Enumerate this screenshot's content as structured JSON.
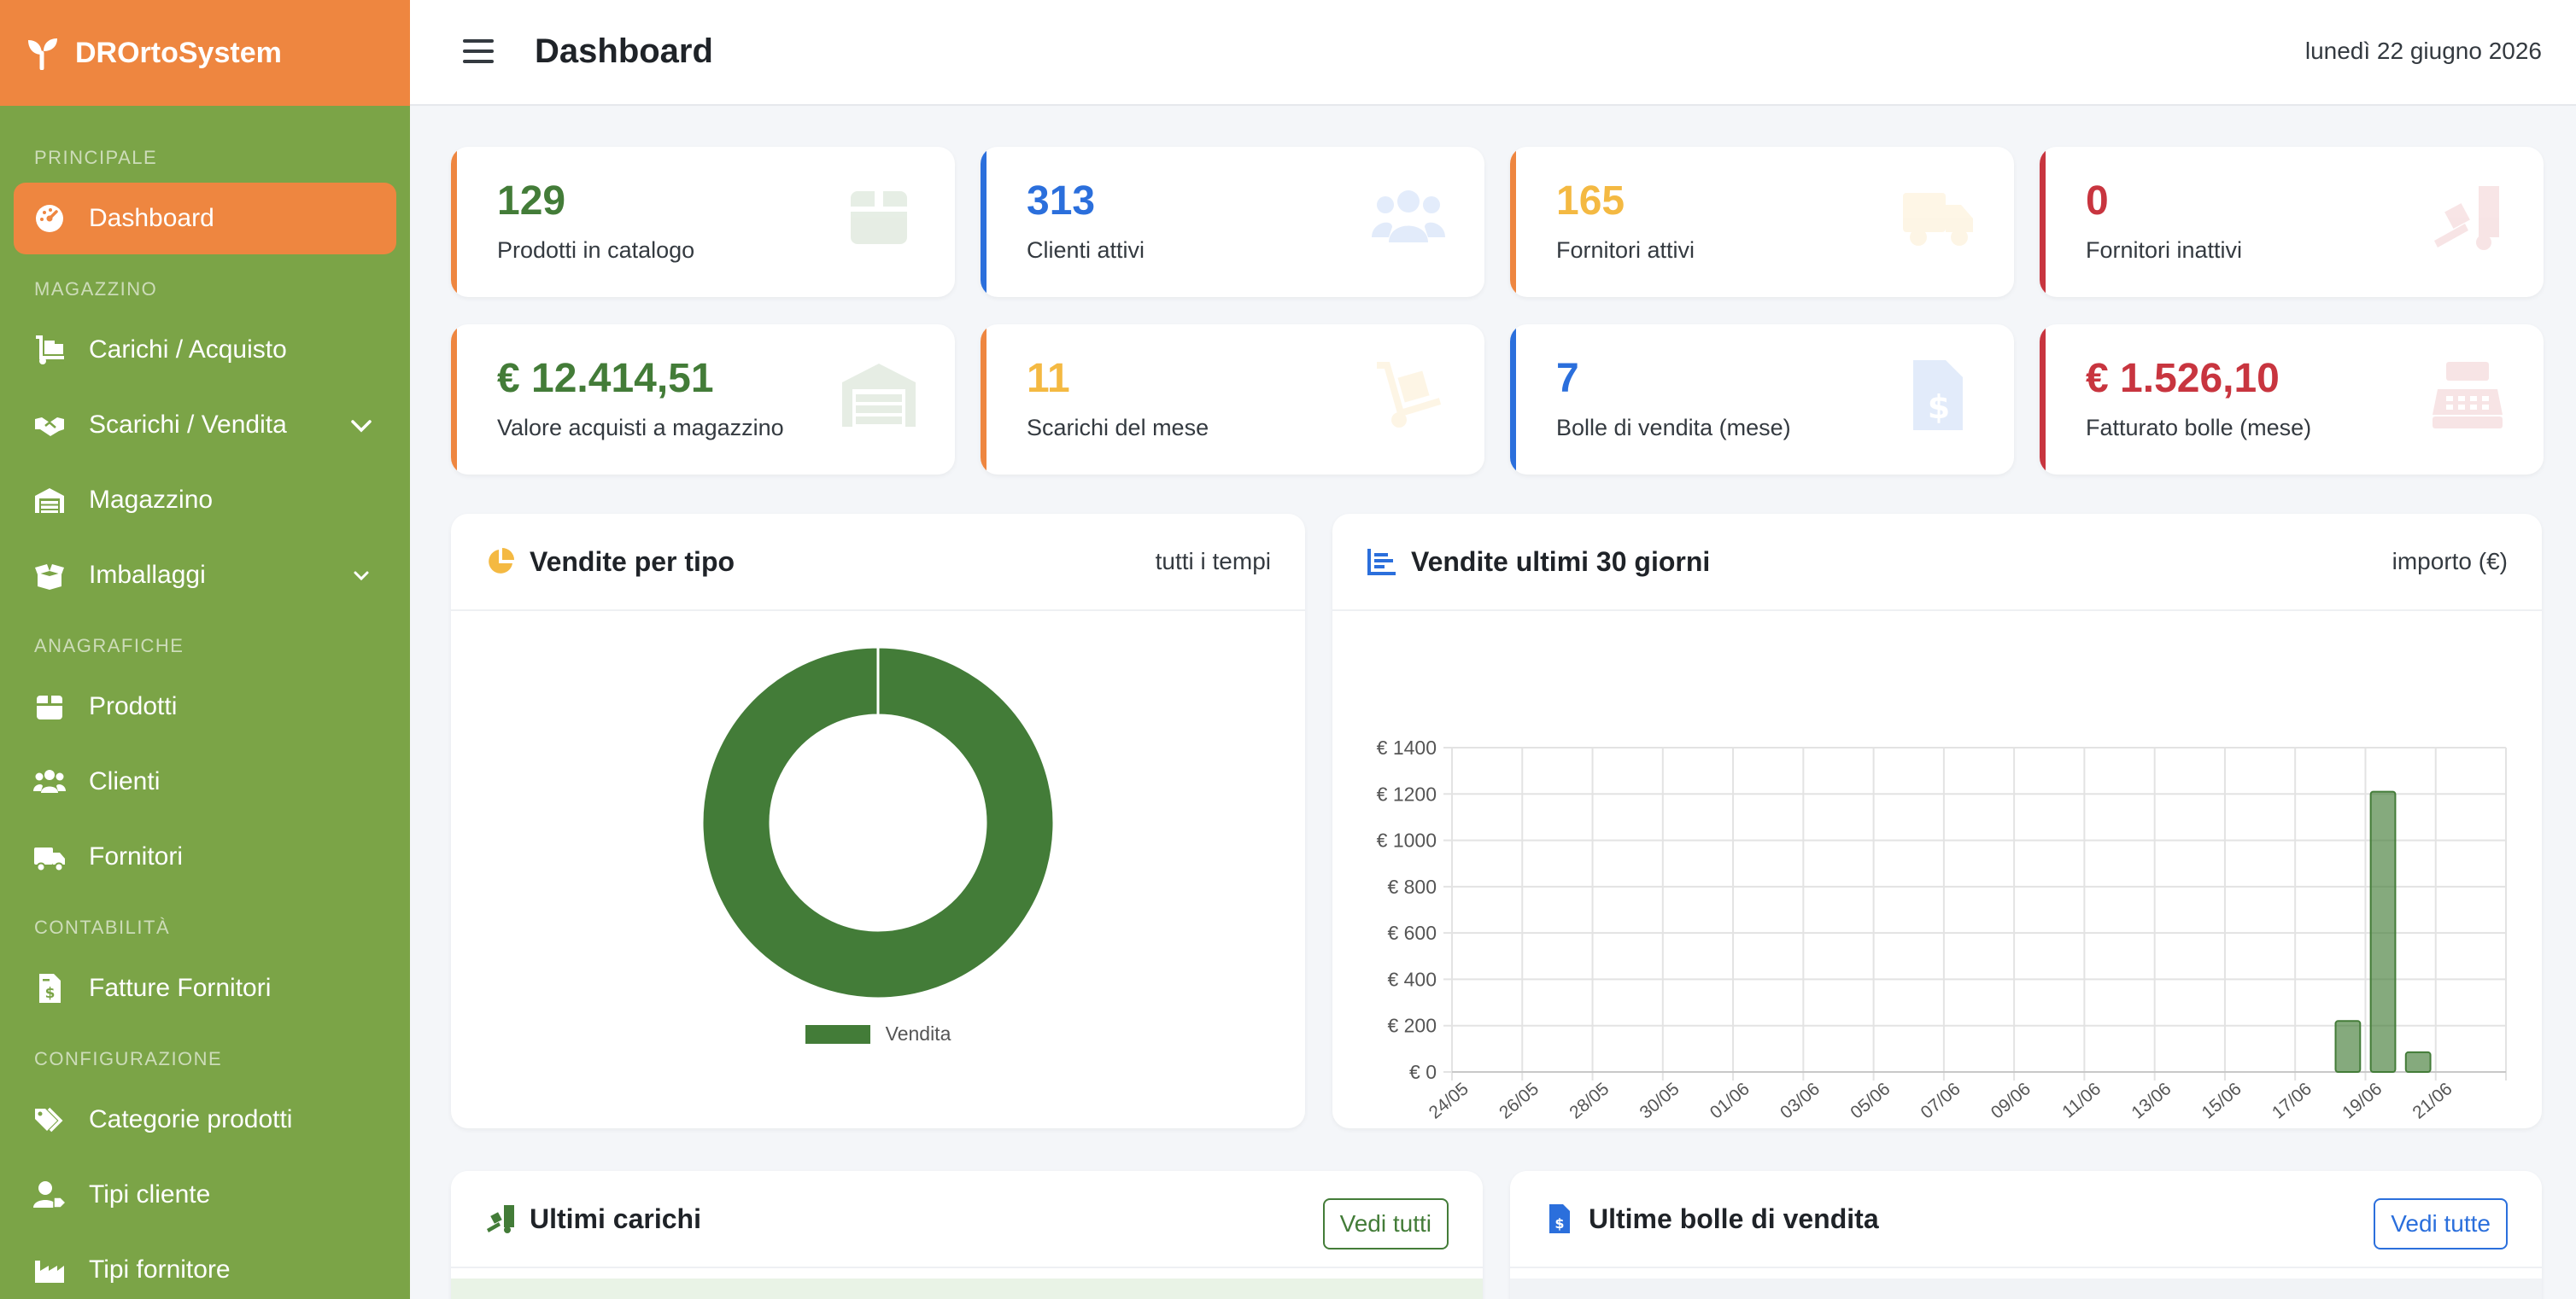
{
  "brand": {
    "name": "DROrtoSystem"
  },
  "header": {
    "title": "Dashboard",
    "date": "lunedì 22 giugno 2026"
  },
  "sidebar": {
    "sections": {
      "principale": "PRINCIPALE",
      "magazzino": "MAGAZZINO",
      "anagrafiche": "ANAGRAFICHE",
      "contabilita": "CONTABILITÀ",
      "configurazione": "CONFIGURAZIONE"
    },
    "items": {
      "dashboard": "Dashboard",
      "carichi": "Carichi / Acquisto",
      "scarichi": "Scarichi / Vendita",
      "magazzino": "Magazzino",
      "imballaggi": "Imballaggi",
      "prodotti": "Prodotti",
      "clienti": "Clienti",
      "fornitori": "Fornitori",
      "fatture": "Fatture Fornitori",
      "categorie": "Categorie prodotti",
      "tipi_cliente": "Tipi cliente",
      "tipi_fornitore": "Tipi fornitore"
    }
  },
  "stats": {
    "prodotti": {
      "value": "129",
      "label": "Prodotti in catalogo"
    },
    "clienti": {
      "value": "313",
      "label": "Clienti attivi"
    },
    "fornitori_attivi": {
      "value": "165",
      "label": "Fornitori attivi"
    },
    "fornitori_inattivi": {
      "value": "0",
      "label": "Fornitori inattivi"
    },
    "valore_acquisti": {
      "value": "€ 12.414,51",
      "label": "Valore acquisti a magazzino"
    },
    "scarichi": {
      "value": "11",
      "label": "Scarichi del mese"
    },
    "bolle": {
      "value": "7",
      "label": "Bolle di vendita (mese)"
    },
    "fatturato": {
      "value": "€ 1.526,10",
      "label": "Fatturato bolle (mese)"
    }
  },
  "colors": {
    "green": "#437c38",
    "blue": "#2b6fdc",
    "orange": "#f4b942",
    "red": "#c8353f",
    "accent": "#ee8640",
    "sidebar": "#7ba447"
  },
  "panels": {
    "vendite_tipo": {
      "title": "Vendite per tipo",
      "subtitle": "tutti i tempi"
    },
    "vendite_30": {
      "title": "Vendite ultimi 30 giorni",
      "subtitle": "importo (€)"
    },
    "ultimi_carichi": {
      "title": "Ultimi carichi",
      "button": "Vedi tutti"
    },
    "ultime_bolle": {
      "title": "Ultime bolle di vendita",
      "button": "Vedi tutte"
    }
  },
  "chart_data": [
    {
      "type": "pie",
      "labels": [
        "Vendita"
      ],
      "values": [
        100
      ],
      "legend": "bottom"
    },
    {
      "type": "bar",
      "categories": [
        "24/05",
        "25/05",
        "26/05",
        "27/05",
        "28/05",
        "29/05",
        "30/05",
        "31/05",
        "01/06",
        "02/06",
        "03/06",
        "04/06",
        "05/06",
        "06/06",
        "07/06",
        "08/06",
        "09/06",
        "10/06",
        "11/06",
        "12/06",
        "13/06",
        "14/06",
        "15/06",
        "16/06",
        "17/06",
        "18/06",
        "19/06",
        "20/06",
        "21/06",
        "22/06"
      ],
      "tick_labels": [
        "24/05",
        "26/05",
        "28/05",
        "30/05",
        "01/06",
        "03/06",
        "05/06",
        "07/06",
        "09/06",
        "11/06",
        "13/06",
        "15/06",
        "17/06",
        "19/06",
        "21/06"
      ],
      "values": [
        0,
        0,
        0,
        0,
        0,
        0,
        0,
        0,
        0,
        0,
        0,
        0,
        0,
        0,
        0,
        0,
        0,
        0,
        0,
        0,
        0,
        0,
        0,
        0,
        0,
        220,
        1210,
        85,
        0,
        0
      ],
      "ylim": [
        0,
        1400
      ],
      "yticks": [
        "€ 0",
        "€ 200",
        "€ 400",
        "€ 600",
        "€ 800",
        "€ 1000",
        "€ 1200",
        "€ 1400"
      ],
      "ytick_values": [
        0,
        200,
        400,
        600,
        800,
        1000,
        1200,
        1400
      ],
      "grid": true
    }
  ]
}
